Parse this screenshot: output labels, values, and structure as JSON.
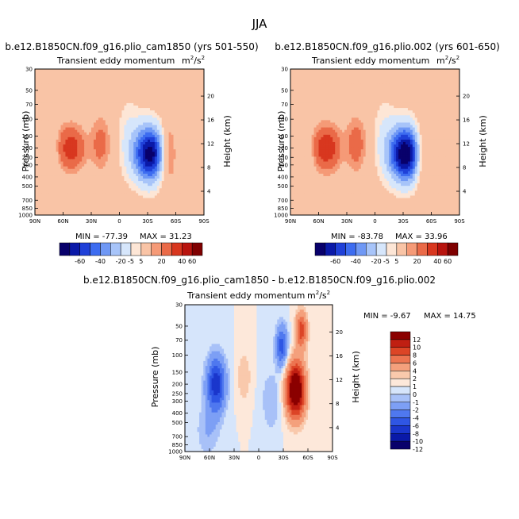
{
  "figure_title": "JJA",
  "colors": {
    "left_scale": [
      "#08006b",
      "#0a19a8",
      "#1f40d8",
      "#3d6cf0",
      "#6f98f5",
      "#a7c4f9",
      "#d6e6fb",
      "#fde6d6",
      "#f9c4a6",
      "#f59a77",
      "#ea6a48",
      "#d8371f",
      "#b8140e",
      "#7f0000"
    ],
    "diff_scale": [
      "#08006b",
      "#0a19a8",
      "#1a36cc",
      "#2f56e4",
      "#4f78ef",
      "#7d9ff5",
      "#a8c1f8",
      "#d6e5fb",
      "#fde8da",
      "#f9c9ac",
      "#f4a07c",
      "#ec7450",
      "#dc4526",
      "#c01f12",
      "#8b0000"
    ]
  },
  "chart_data": [
    {
      "type": "heatmap",
      "title": "b.e12.B1850CN.f09_g16.plio_cam1850 (yrs 501-550)",
      "subtitle": "Transient eddy momentum",
      "units_base": "m",
      "units_sup1": "2",
      "units_mid": "/s",
      "units_sup2": "2",
      "ylabel": "Pressure (mb)",
      "y2label": "Height (km)",
      "x_ticks": [
        "90N",
        "60N",
        "30N",
        "0",
        "30S",
        "60S",
        "90S"
      ],
      "x_range": [
        90,
        -90
      ],
      "y_ticks": [
        "30",
        "50",
        "70",
        "100",
        "150",
        "200",
        "250",
        "300",
        "400",
        "500",
        "700",
        "850",
        "1000"
      ],
      "y_range_mb": [
        1000,
        30
      ],
      "y2_ticks": [
        "20",
        "16",
        "12",
        "8",
        "4"
      ],
      "min_label": "MIN = -77.39",
      "max_label": "MAX = 31.23",
      "min": -77.39,
      "max": 31.23,
      "colorbar_ticks": [
        "-60",
        "-40",
        "-20",
        "-5",
        "5",
        "20",
        "40",
        "60"
      ],
      "colorbar_levels": [
        -70,
        -60,
        -50,
        -40,
        -30,
        -20,
        -10,
        -5,
        5,
        10,
        20,
        30,
        40,
        50,
        60,
        70
      ],
      "features": [
        {
          "lat": 52,
          "p": 200,
          "value": 27,
          "sigma_lat": 10,
          "sigma_z": 1.0
        },
        {
          "lat": 20,
          "p": 180,
          "value": 14,
          "sigma_lat": 7,
          "sigma_z": 1.2
        },
        {
          "lat": -33,
          "p": 230,
          "value": -77,
          "sigma_lat": 12,
          "sigma_z": 1.3
        },
        {
          "lat": -50,
          "p": 230,
          "value": 28,
          "sigma_lat": 7,
          "sigma_z": 1.4
        },
        {
          "lat": -10,
          "p": 150,
          "value": -9,
          "sigma_lat": 9,
          "sigma_z": 2.0
        },
        {
          "lat": 72,
          "p": 230,
          "value": -7,
          "sigma_lat": 6,
          "sigma_z": 1.2
        }
      ]
    },
    {
      "type": "heatmap",
      "title": "b.e12.B1850CN.f09_g16.plio.002 (yrs 601-650)",
      "subtitle": "Transient eddy momentum",
      "units_base": "m",
      "units_sup1": "2",
      "units_mid": "/s",
      "units_sup2": "2",
      "ylabel": "Pressure (mb)",
      "y2label": "Height (km)",
      "x_ticks": [
        "90N",
        "60N",
        "30N",
        "0",
        "30S",
        "60S",
        "90S"
      ],
      "x_range": [
        90,
        -90
      ],
      "y_ticks": [
        "30",
        "50",
        "70",
        "100",
        "150",
        "200",
        "250",
        "300",
        "400",
        "500",
        "700",
        "850",
        "1000"
      ],
      "y_range_mb": [
        1000,
        30
      ],
      "y2_ticks": [
        "20",
        "16",
        "12",
        "8",
        "4"
      ],
      "min_label": "MIN = -83.78",
      "max_label": "MAX = 33.96",
      "min": -83.78,
      "max": 33.96,
      "colorbar_ticks": [
        "-60",
        "-40",
        "-20",
        "-5",
        "5",
        "20",
        "40",
        "60"
      ],
      "colorbar_levels": [
        -70,
        -60,
        -50,
        -40,
        -30,
        -20,
        -10,
        -5,
        5,
        10,
        20,
        30,
        40,
        50,
        60,
        70
      ],
      "features": [
        {
          "lat": 52,
          "p": 200,
          "value": 30,
          "sigma_lat": 10,
          "sigma_z": 1.0
        },
        {
          "lat": 20,
          "p": 180,
          "value": 16,
          "sigma_lat": 7,
          "sigma_z": 1.2
        },
        {
          "lat": -33,
          "p": 230,
          "value": -83,
          "sigma_lat": 12,
          "sigma_z": 1.3
        },
        {
          "lat": -50,
          "p": 230,
          "value": 26,
          "sigma_lat": 7,
          "sigma_z": 1.4
        },
        {
          "lat": -10,
          "p": 150,
          "value": -9,
          "sigma_lat": 9,
          "sigma_z": 2.0
        },
        {
          "lat": 72,
          "p": 230,
          "value": -7,
          "sigma_lat": 6,
          "sigma_z": 1.2
        }
      ]
    },
    {
      "type": "heatmap",
      "title": "b.e12.B1850CN.f09_g16.plio_cam1850 - b.e12.B1850CN.f09_g16.plio.002",
      "subtitle": "Transient eddy momentum",
      "units_base": "m",
      "units_sup1": "2",
      "units_mid": "/s",
      "units_sup2": "2",
      "ylabel": "Pressure (mb)",
      "y2label": "Height (km)",
      "x_ticks": [
        "90N",
        "60N",
        "30N",
        "0",
        "30S",
        "60S",
        "90S"
      ],
      "x_range": [
        90,
        -90
      ],
      "y_ticks": [
        "30",
        "50",
        "70",
        "100",
        "150",
        "200",
        "250",
        "300",
        "400",
        "500",
        "700",
        "850",
        "1000"
      ],
      "y_range_mb": [
        1000,
        30
      ],
      "y2_ticks": [
        "20",
        "16",
        "12",
        "8",
        "4"
      ],
      "min_label": "MIN = -9.67",
      "max_label": "MAX = 14.75",
      "min": -9.67,
      "max": 14.75,
      "colorbar_ticks": [
        "12",
        "10",
        "8",
        "6",
        "4",
        "2",
        "1",
        "0",
        "-1",
        "-2",
        "-4",
        "-6",
        "-8",
        "-10",
        "-12"
      ],
      "colorbar_levels": [
        -12,
        -10,
        -8,
        -6,
        -4,
        -2,
        -1,
        0,
        1,
        2,
        4,
        6,
        8,
        10,
        12
      ],
      "features": [
        {
          "lat": 52,
          "p": 200,
          "value": -9.5,
          "sigma_lat": 8,
          "sigma_z": 1.3
        },
        {
          "lat": -45,
          "p": 230,
          "value": 14.5,
          "sigma_lat": 8,
          "sigma_z": 1.3
        },
        {
          "lat": -52,
          "p": 55,
          "value": 7,
          "sigma_lat": 5,
          "sigma_z": 0.9
        },
        {
          "lat": -28,
          "p": 80,
          "value": -7,
          "sigma_lat": 5,
          "sigma_z": 1.0
        },
        {
          "lat": 18,
          "p": 170,
          "value": 2,
          "sigma_lat": 6,
          "sigma_z": 1.2
        },
        {
          "lat": -15,
          "p": 300,
          "value": -2,
          "sigma_lat": 8,
          "sigma_z": 1.5
        },
        {
          "lat": 62,
          "p": 600,
          "value": -2,
          "sigma_lat": 10,
          "sigma_z": 1.3
        }
      ]
    }
  ]
}
